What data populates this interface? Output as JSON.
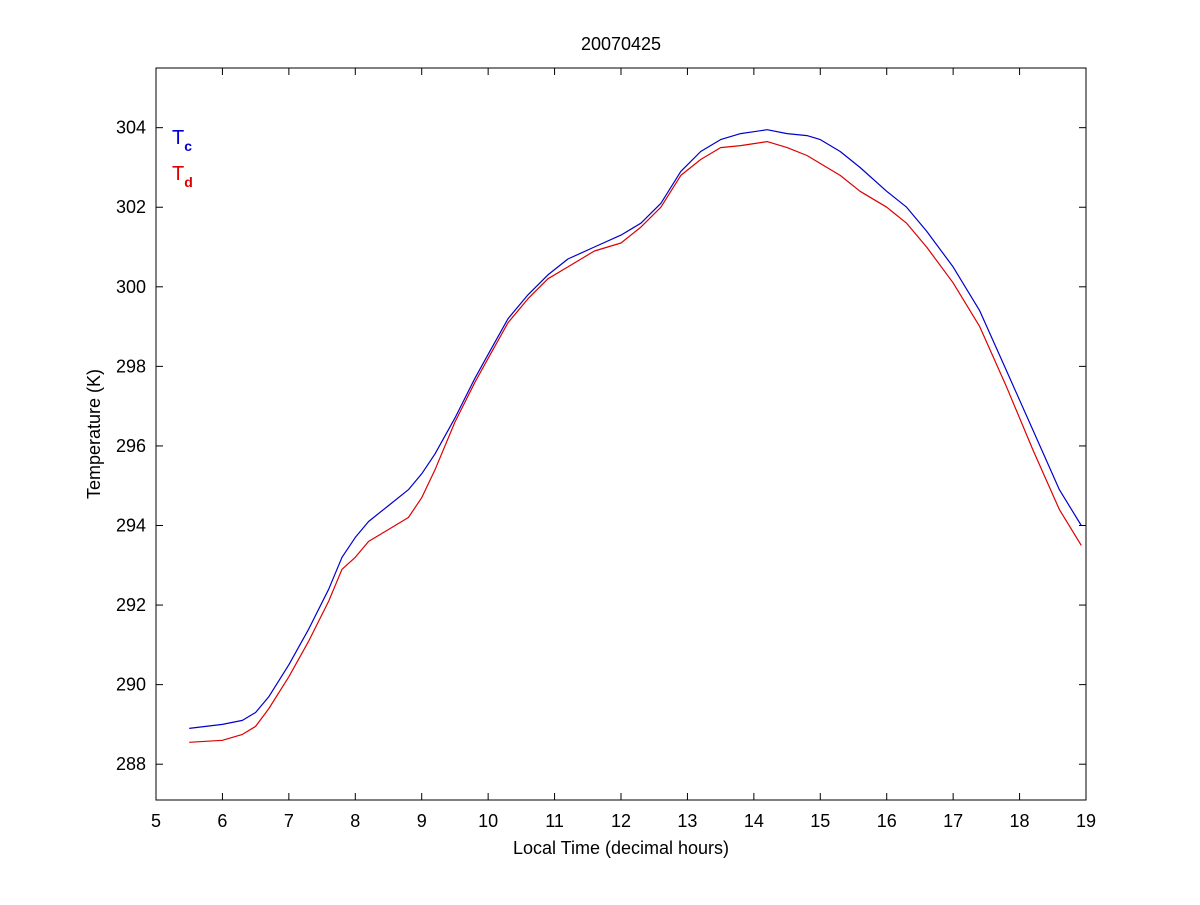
{
  "chart_data": {
    "type": "line",
    "title": "20070425",
    "xlabel": "Local Time (decimal hours)",
    "ylabel": "Temperature (K)",
    "xlim": [
      5,
      19
    ],
    "ylim": [
      287.1,
      305.5
    ],
    "xticks": [
      5,
      6,
      7,
      8,
      9,
      10,
      11,
      12,
      13,
      14,
      15,
      16,
      17,
      18,
      19
    ],
    "yticks": [
      288,
      290,
      292,
      294,
      296,
      298,
      300,
      302,
      304
    ],
    "grid": false,
    "legend_position": "top-left",
    "series": [
      {
        "name": "T",
        "subscript": "c",
        "color": "#0000cc",
        "x": [
          5.5,
          6.0,
          6.3,
          6.5,
          6.7,
          7.0,
          7.3,
          7.6,
          7.8,
          8.0,
          8.2,
          8.5,
          8.8,
          9.0,
          9.2,
          9.5,
          9.8,
          10.0,
          10.3,
          10.6,
          10.9,
          11.2,
          11.6,
          12.0,
          12.3,
          12.6,
          12.9,
          13.2,
          13.5,
          13.8,
          14.0,
          14.2,
          14.5,
          14.8,
          15.0,
          15.3,
          15.6,
          16.0,
          16.3,
          16.6,
          17.0,
          17.4,
          17.8,
          18.2,
          18.6,
          18.93
        ],
        "y": [
          288.9,
          289.0,
          289.1,
          289.3,
          289.7,
          290.5,
          291.4,
          292.4,
          293.2,
          293.7,
          294.1,
          294.5,
          294.9,
          295.3,
          295.8,
          296.7,
          297.7,
          298.3,
          299.2,
          299.8,
          300.3,
          300.7,
          301.0,
          301.3,
          301.6,
          302.1,
          302.9,
          303.4,
          303.7,
          303.85,
          303.9,
          303.95,
          303.85,
          303.8,
          303.7,
          303.4,
          303.0,
          302.4,
          302.0,
          301.4,
          300.5,
          299.4,
          297.9,
          296.4,
          294.9,
          294.0
        ]
      },
      {
        "name": "T",
        "subscript": "d",
        "color": "#dd0000",
        "x": [
          5.5,
          6.0,
          6.3,
          6.5,
          6.7,
          7.0,
          7.3,
          7.6,
          7.8,
          8.0,
          8.2,
          8.5,
          8.8,
          9.0,
          9.2,
          9.5,
          9.8,
          10.0,
          10.3,
          10.6,
          10.9,
          11.2,
          11.6,
          12.0,
          12.3,
          12.6,
          12.9,
          13.2,
          13.5,
          13.8,
          14.0,
          14.2,
          14.5,
          14.8,
          15.0,
          15.3,
          15.6,
          16.0,
          16.3,
          16.6,
          17.0,
          17.4,
          17.8,
          18.2,
          18.6,
          18.93
        ],
        "y": [
          288.55,
          288.6,
          288.75,
          288.95,
          289.4,
          290.2,
          291.1,
          292.1,
          292.9,
          293.2,
          293.6,
          293.9,
          294.2,
          294.7,
          295.4,
          296.6,
          297.6,
          298.2,
          299.1,
          299.7,
          300.2,
          300.5,
          300.9,
          301.1,
          301.5,
          302.0,
          302.8,
          303.2,
          303.5,
          303.55,
          303.6,
          303.65,
          303.5,
          303.3,
          303.1,
          302.8,
          302.4,
          302.0,
          301.6,
          301.0,
          300.1,
          299.0,
          297.5,
          295.9,
          294.4,
          293.5
        ]
      }
    ]
  }
}
